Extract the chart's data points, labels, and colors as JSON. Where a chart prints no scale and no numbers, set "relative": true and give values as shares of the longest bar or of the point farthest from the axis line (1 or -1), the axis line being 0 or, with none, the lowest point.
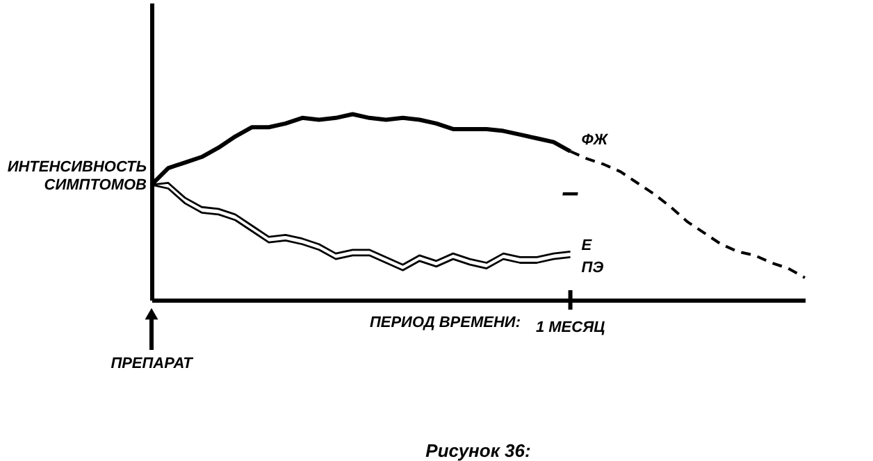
{
  "chart_data": {
    "type": "line",
    "title": "Рисунок 36:",
    "ylabel": "ИНТЕНСИВНОСТЬ СИМПТОМОВ",
    "xlabel": "ПЕРИОД ВРЕМЕНИ:",
    "relative": true,
    "legend": false,
    "grid": false,
    "marker": "none",
    "categories": [
      null,
      null,
      null,
      null,
      null,
      null,
      null,
      null,
      null,
      null,
      null,
      null,
      null,
      null,
      null,
      null,
      null,
      null,
      null,
      null,
      null,
      null,
      null,
      null,
      null,
      null,
      null,
      null,
      null,
      null,
      null,
      null,
      null,
      null,
      null,
      null,
      null,
      null,
      null,
      null
    ],
    "series": [
      {
        "name": "ФЖ",
        "color": "#000000",
        "line_style": "solid",
        "values": [
          0.62,
          0.71,
          0.74,
          0.77,
          0.82,
          0.88,
          0.93,
          0.93,
          0.95,
          0.98,
          0.97,
          0.98,
          1,
          0.98,
          0.97,
          0.98,
          0.97,
          0.95,
          0.92,
          0.92,
          0.92,
          0.91,
          0.89,
          0.87,
          0.85,
          0.8,
          null,
          null,
          null,
          null,
          null,
          null,
          null,
          null,
          null,
          null,
          null,
          null,
          null,
          null
        ]
      },
      {
        "color": "#000000",
        "line_style": "dashed",
        "values": [
          null,
          null,
          null,
          null,
          null,
          null,
          null,
          null,
          null,
          null,
          null,
          null,
          null,
          null,
          null,
          null,
          null,
          null,
          null,
          null,
          null,
          null,
          null,
          null,
          null,
          0.8,
          0.76,
          0.73,
          0.69,
          0.63,
          0.57,
          0.5,
          0.42,
          0.36,
          0.3,
          0.26,
          0.24,
          0.2,
          0.17,
          0.12
        ]
      },
      {
        "name": "Е",
        "color": "#000000",
        "line_style": "solid",
        "values": [
          0.62,
          0.63,
          0.55,
          0.5,
          0.49,
          0.46,
          0.4,
          0.34,
          0.35,
          0.33,
          0.3,
          0.25,
          0.27,
          0.27,
          0.23,
          0.19,
          0.24,
          0.21,
          0.25,
          0.22,
          0.2,
          0.25,
          0.23,
          0.23,
          0.25,
          0.26,
          null,
          null,
          null,
          null,
          null,
          null,
          null,
          null,
          null,
          null,
          null,
          null,
          null,
          null
        ]
      },
      {
        "name": "ПЭ",
        "color": "#000000",
        "line_style": "solid",
        "values": [
          0.62,
          0.6,
          0.52,
          0.47,
          0.46,
          0.43,
          0.37,
          0.31,
          0.32,
          0.3,
          0.27,
          0.22,
          0.24,
          0.24,
          0.2,
          0.16,
          0.21,
          0.18,
          0.22,
          0.19,
          0.17,
          0.22,
          0.2,
          0.2,
          0.22,
          0.23,
          null,
          null,
          null,
          null,
          null,
          null,
          null,
          null,
          null,
          null,
          null,
          null,
          null,
          null
        ]
      }
    ],
    "annotations": [
      "ПРЕПАРАТ",
      "1 МЕСЯЦ",
      "–"
    ]
  }
}
